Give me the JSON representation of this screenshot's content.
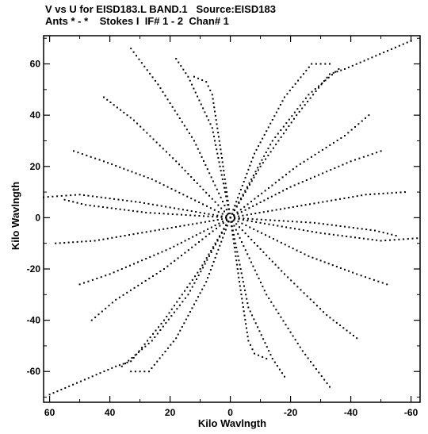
{
  "chart_data": {
    "type": "scatter",
    "title": "V vs U for EISD183.L BAND.1   Source:EISD183",
    "subtitle": "Ants * - *    Stokes I  IF# 1 - 2  Chan# 1",
    "xlabel": "Kilo Wavlngth",
    "ylabel": "Kilo Wavlngth",
    "xlim": [
      62,
      -63
    ],
    "ylim": [
      -72,
      71
    ],
    "x_reversed": true,
    "x_ticks": [
      60,
      40,
      20,
      0,
      -20,
      -40,
      -60
    ],
    "x_tick_labels": [
      "60",
      "40",
      "20",
      "0",
      "-20",
      "-40",
      "-60"
    ],
    "y_ticks": [
      -60,
      -40,
      -20,
      0,
      20,
      40,
      60
    ],
    "y_tick_labels": [
      "-60",
      "-40",
      "-20",
      "0",
      "20",
      "40",
      "60"
    ],
    "grid": false,
    "tracks": [
      {
        "points": [
          [
            0,
            0
          ],
          [
            -10,
            20
          ],
          [
            -22,
            40
          ],
          [
            -33,
            56
          ],
          [
            -38,
            58
          ],
          [
            -60,
            69
          ]
        ]
      },
      {
        "points": [
          [
            0,
            0
          ],
          [
            10,
            -20
          ],
          [
            22,
            -40
          ],
          [
            33,
            -56
          ],
          [
            38,
            -58
          ],
          [
            60,
            -69
          ]
        ]
      },
      {
        "points": [
          [
            0,
            0
          ],
          [
            -8,
            25
          ],
          [
            -18,
            47
          ],
          [
            -27,
            60
          ],
          [
            -33,
            60
          ]
        ]
      },
      {
        "points": [
          [
            0,
            0
          ],
          [
            8,
            -25
          ],
          [
            18,
            -47
          ],
          [
            27,
            -60
          ],
          [
            33,
            -60
          ]
        ]
      },
      {
        "points": [
          [
            0,
            0
          ],
          [
            3,
            25
          ],
          [
            6,
            48
          ],
          [
            8,
            53
          ],
          [
            12,
            55
          ]
        ]
      },
      {
        "points": [
          [
            0,
            0
          ],
          [
            -3,
            -25
          ],
          [
            -6,
            -48
          ],
          [
            -8,
            -53
          ],
          [
            -12,
            -55
          ]
        ]
      },
      {
        "points": [
          [
            0,
            0
          ],
          [
            12,
            30
          ],
          [
            24,
            52
          ],
          [
            33,
            66
          ]
        ]
      },
      {
        "points": [
          [
            0,
            0
          ],
          [
            -12,
            -30
          ],
          [
            -24,
            -52
          ],
          [
            -33,
            -66
          ]
        ]
      },
      {
        "points": [
          [
            0,
            0
          ],
          [
            18,
            22
          ],
          [
            32,
            38
          ],
          [
            42,
            47
          ]
        ]
      },
      {
        "points": [
          [
            0,
            0
          ],
          [
            -18,
            -22
          ],
          [
            -32,
            -38
          ],
          [
            -42,
            -47
          ]
        ]
      },
      {
        "points": [
          [
            0,
            0
          ],
          [
            -20,
            12
          ],
          [
            -40,
            22
          ],
          [
            -50,
            26
          ]
        ]
      },
      {
        "points": [
          [
            0,
            0
          ],
          [
            20,
            -12
          ],
          [
            40,
            -22
          ],
          [
            50,
            -26
          ]
        ]
      },
      {
        "points": [
          [
            0,
            0
          ],
          [
            -25,
            5
          ],
          [
            -45,
            9
          ],
          [
            -58,
            10
          ]
        ]
      },
      {
        "points": [
          [
            0,
            0
          ],
          [
            25,
            -5
          ],
          [
            45,
            -9
          ],
          [
            58,
            -10
          ]
        ]
      },
      {
        "points": [
          [
            0,
            0
          ],
          [
            30,
            6
          ],
          [
            50,
            9
          ],
          [
            62,
            8
          ]
        ]
      },
      {
        "points": [
          [
            0,
            0
          ],
          [
            -30,
            -6
          ],
          [
            -50,
            -9
          ],
          [
            -62,
            -8
          ]
        ]
      },
      {
        "points": [
          [
            0,
            0
          ],
          [
            26,
            15
          ],
          [
            42,
            22
          ],
          [
            52,
            26
          ]
        ]
      },
      {
        "points": [
          [
            0,
            0
          ],
          [
            -26,
            -15
          ],
          [
            -42,
            -22
          ],
          [
            -52,
            -26
          ]
        ]
      },
      {
        "points": [
          [
            0,
            0
          ],
          [
            -28,
            -2
          ],
          [
            -48,
            -5
          ],
          [
            -55,
            -7
          ]
        ]
      },
      {
        "points": [
          [
            0,
            0
          ],
          [
            28,
            2
          ],
          [
            48,
            5
          ],
          [
            55,
            7
          ]
        ]
      },
      {
        "points": [
          [
            0,
            0
          ],
          [
            -14,
            30
          ],
          [
            -26,
            48
          ],
          [
            -36,
            58
          ]
        ]
      },
      {
        "points": [
          [
            0,
            0
          ],
          [
            14,
            -30
          ],
          [
            26,
            -48
          ],
          [
            36,
            -58
          ]
        ]
      },
      {
        "points": [
          [
            0,
            0
          ],
          [
            -22,
            20
          ],
          [
            -38,
            32
          ],
          [
            -46,
            40
          ]
        ]
      },
      {
        "points": [
          [
            0,
            0
          ],
          [
            22,
            -20
          ],
          [
            38,
            -32
          ],
          [
            46,
            -40
          ]
        ]
      },
      {
        "points": [
          [
            0,
            0
          ],
          [
            6,
            35
          ],
          [
            14,
            55
          ],
          [
            18,
            62
          ]
        ]
      },
      {
        "points": [
          [
            0,
            0
          ],
          [
            -6,
            -35
          ],
          [
            -14,
            -55
          ],
          [
            -18,
            -62
          ]
        ]
      }
    ],
    "rings": [
      {
        "r": 0.35,
        "points": [
          [
            -0.6,
            12
          ],
          [
            0.2,
            12
          ],
          [
            1.3,
            13
          ],
          [
            3,
            14
          ],
          [
            4.5,
            15
          ],
          [
            6,
            14.5
          ],
          [
            7.5,
            14
          ],
          [
            9,
            12.5
          ],
          [
            10.5,
            11
          ]
        ]
      },
      {
        "r": 0.35,
        "points": [
          [
            0.6,
            -12
          ],
          [
            -0.2,
            -12
          ],
          [
            -1.3,
            -13
          ],
          [
            -3,
            -14
          ],
          [
            -4.5,
            -15
          ],
          [
            -6,
            -14.5
          ],
          [
            -7.5,
            -14
          ],
          [
            -9,
            -12.5
          ],
          [
            -10.5,
            -11
          ]
        ]
      }
    ]
  }
}
